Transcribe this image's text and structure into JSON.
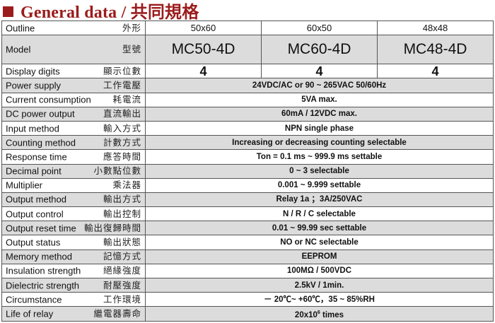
{
  "title": "General data / 共同規格",
  "colors": {
    "title": "#9b1c1c",
    "stripe": "#dcdcdc"
  },
  "outline": {
    "en": "Outline",
    "zh": "外形",
    "values": [
      "50x60",
      "60x50",
      "48x48"
    ]
  },
  "model": {
    "en": "Model",
    "zh": "型號",
    "values": [
      "MC50-4D",
      "MC60-4D",
      "MC48-4D"
    ]
  },
  "digits": {
    "en": "Display digits",
    "zh": "顯示位數",
    "values": [
      "4",
      "4",
      "4"
    ]
  },
  "rows": [
    {
      "en": "Power supply",
      "zh": "工作電壓",
      "value": "24VDC/AC or 90 ~ 265VAC 50/60Hz"
    },
    {
      "en": "Current consumption",
      "zh": "耗電流",
      "value": "5VA max."
    },
    {
      "en": "DC power output",
      "zh": "直流輸出",
      "value": "60mA / 12VDC max."
    },
    {
      "en": "Input method",
      "zh": "輸入方式",
      "value": "NPN single phase"
    },
    {
      "en": "Counting method",
      "zh": "計數方式",
      "value": "Increasing or decreasing counting selectable"
    },
    {
      "en": "Response time",
      "zh": "應答時間",
      "value": "Ton = 0.1 ms ~ 999.9 ms settable"
    },
    {
      "en": "Decimal point",
      "zh": "小數點位數",
      "value": "0 ~ 3 selectable"
    },
    {
      "en": "Multiplier",
      "zh": "乘法器",
      "value": "0.001 ~ 9.999 settable"
    },
    {
      "en": "Output method",
      "zh": "輸出方式",
      "value": "Relay 1a ；3A/250VAC"
    },
    {
      "en": "Output control",
      "zh": "輸出控制",
      "value": "N / R / C selectable"
    },
    {
      "en": "Output reset time",
      "zh": "輸出復歸時間",
      "value": "0.01 ~ 99.99 sec settable"
    },
    {
      "en": "Output status",
      "zh": "輸出狀態",
      "value": "NO or NC selectable"
    },
    {
      "en": "Memory method",
      "zh": "記憶方式",
      "value": "EEPROM"
    },
    {
      "en": "Insulation strength",
      "zh": "絕緣強度",
      "value": "100MΩ / 500VDC"
    },
    {
      "en": "Dielectric strength",
      "zh": "耐壓強度",
      "value": "2.5kV / 1min."
    },
    {
      "en": "Circumstance",
      "zh": "工作環境",
      "value": "－ 20℃~ +60℃，35 ~ 85%RH"
    },
    {
      "en": "Life of relay",
      "zh": "繼電器壽命",
      "value": "20x10",
      "value_sup": "6",
      "value_suffix": " times"
    }
  ]
}
